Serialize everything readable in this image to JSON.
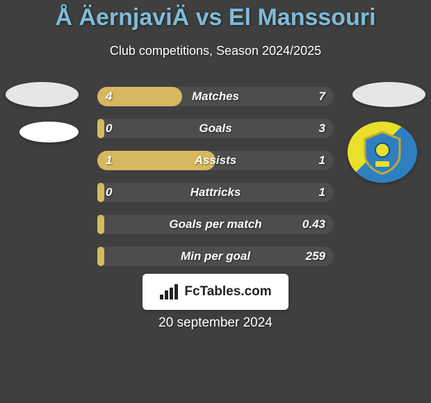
{
  "colors": {
    "background": "#3f3f3f",
    "title_color": "#7fbbd8",
    "subtitle_color": "#ffffff",
    "bar_bg": "#4d4d4d",
    "bar_fill": "#d6b95f",
    "bar_text": "#ffffff",
    "avatar_bg": "#e6e6e6",
    "team_left_bg": "#ffffff",
    "badge_bg": "#ffffff",
    "badge_text": "#222222",
    "date_color": "#ffffff",
    "team_right_gradient_start": "#e8e02a",
    "team_right_gradient_end": "#2f7fbf"
  },
  "typography": {
    "title_fontsize": 34,
    "subtitle_fontsize": 18,
    "bar_label_fontsize": 17,
    "bar_value_fontsize": 17,
    "date_fontsize": 19,
    "badge_fontsize": 19
  },
  "header": {
    "title": "Å ÄernjaviÄ vs El Manssouri",
    "subtitle": "Club competitions, Season 2024/2025"
  },
  "bars": [
    {
      "label": "Matches",
      "left": "4",
      "right": "7",
      "fill_ratio": 0.36
    },
    {
      "label": "Goals",
      "left": "0",
      "right": "3",
      "fill_ratio": 0.03
    },
    {
      "label": "Assists",
      "left": "1",
      "right": "1",
      "fill_ratio": 0.5
    },
    {
      "label": "Hattricks",
      "left": "0",
      "right": "1",
      "fill_ratio": 0.03
    },
    {
      "label": "Goals per match",
      "left": "",
      "right": "0.43",
      "fill_ratio": 0.03
    },
    {
      "label": "Min per goal",
      "left": "",
      "right": "259",
      "fill_ratio": 0.03
    }
  ],
  "fctables": {
    "label": "FcTables.com"
  },
  "date": "20 september 2024"
}
